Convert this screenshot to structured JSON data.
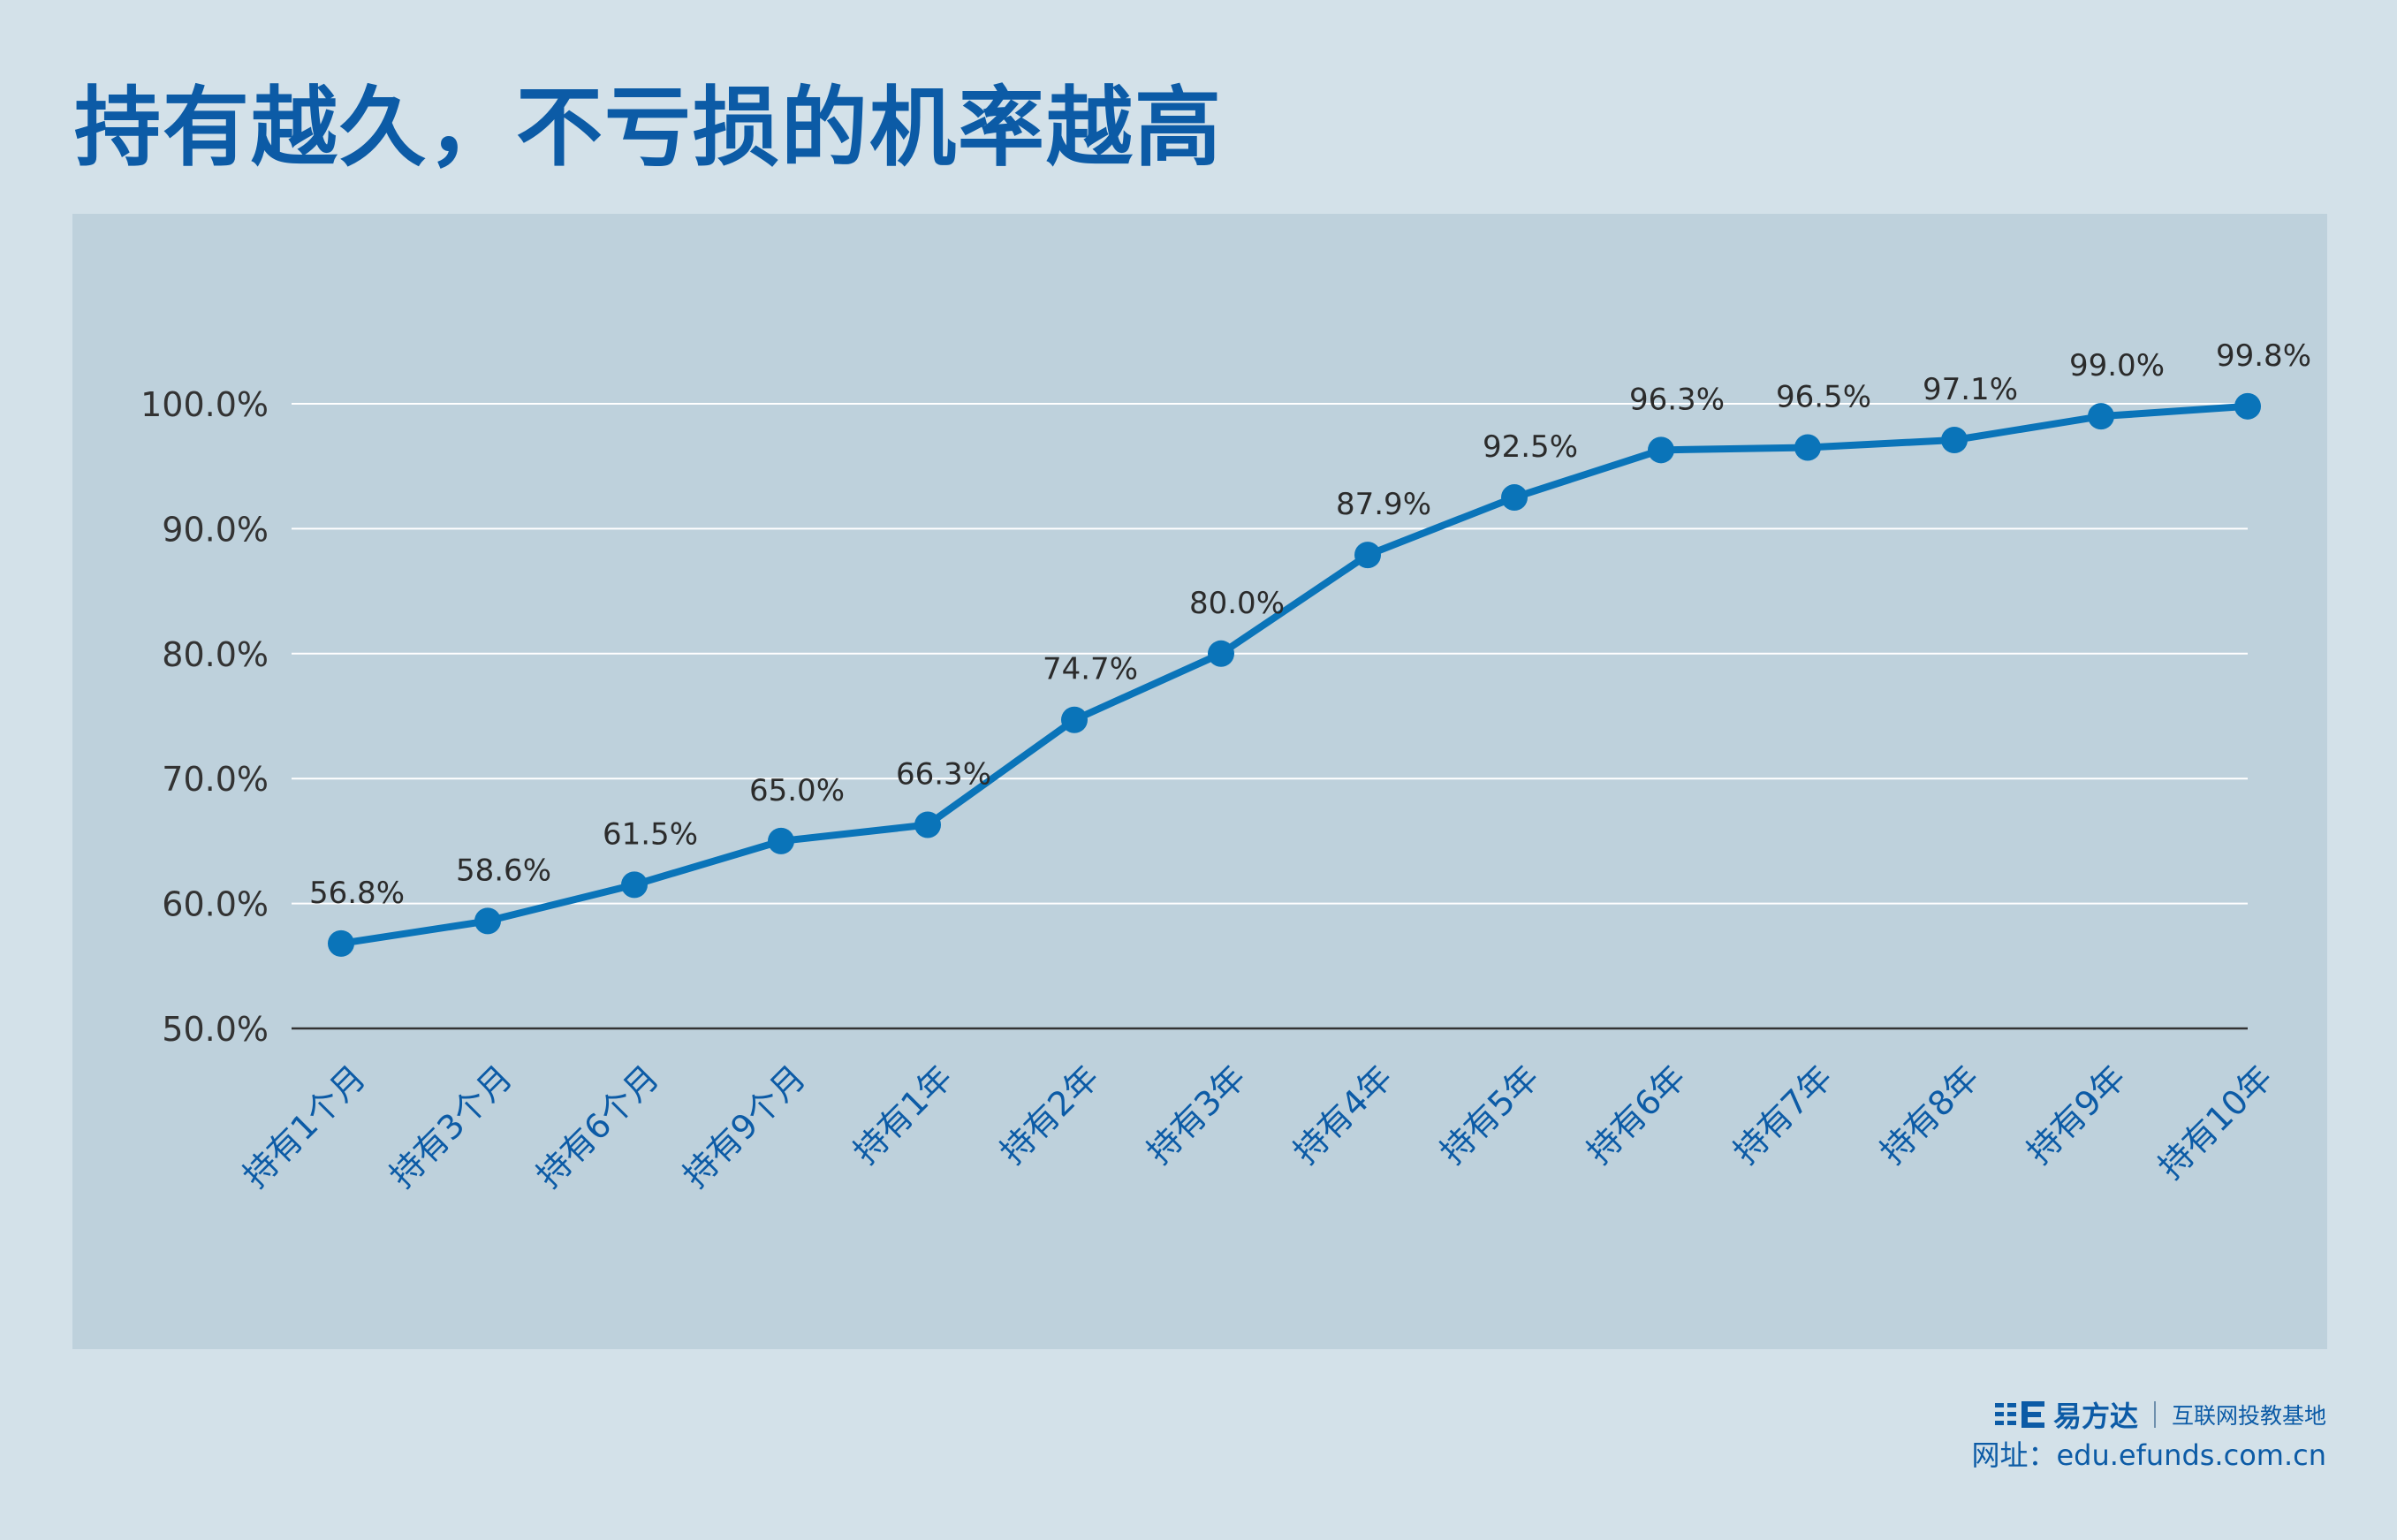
{
  "page": {
    "title": "持有越久，不亏损的机率越高",
    "background": "#d3e1e9",
    "panel_color": "#bed1dc"
  },
  "chart_data": {
    "type": "line",
    "title": "持有越久，不亏损的机率越高",
    "categories": [
      "持有1个月",
      "持有3个月",
      "持有6个月",
      "持有9个月",
      "持有1年",
      "持有2年",
      "持有3年",
      "持有4年",
      "持有5年",
      "持有6年",
      "持有7年",
      "持有8年",
      "持有9年",
      "持有10年"
    ],
    "series": [
      {
        "values": [
          56.8,
          58.6,
          61.5,
          65.0,
          66.3,
          74.7,
          80.0,
          87.9,
          92.5,
          96.3,
          96.5,
          97.1,
          99.0,
          99.8
        ],
        "labels": [
          "56.8%",
          "58.6%",
          "61.5%",
          "65.0%",
          "66.3%",
          "74.7%",
          "80.0%",
          "87.9%",
          "92.5%",
          "96.3%",
          "96.5%",
          "97.1%",
          "99.0%",
          "99.8%"
        ],
        "color": "#0a74b9"
      }
    ],
    "yticks": [
      50,
      60,
      70,
      80,
      90,
      100
    ],
    "ytick_labels": [
      "50.0%",
      "60.0%",
      "70.0%",
      "80.0%",
      "90.0%",
      "100.0%"
    ],
    "ylim": [
      50,
      100
    ],
    "grid": true,
    "xlabel": "",
    "ylabel": "",
    "grid_color": "#ffffff",
    "axis_color": "#333333",
    "tick_label_color": "#333333",
    "category_label_color": "#0c5ba6"
  },
  "footer": {
    "brand_icon": "efunds-logo-icon",
    "brand_name": "易方达",
    "slogan": "互联网投教基地",
    "website": "网址：edu.efunds.com.cn"
  }
}
